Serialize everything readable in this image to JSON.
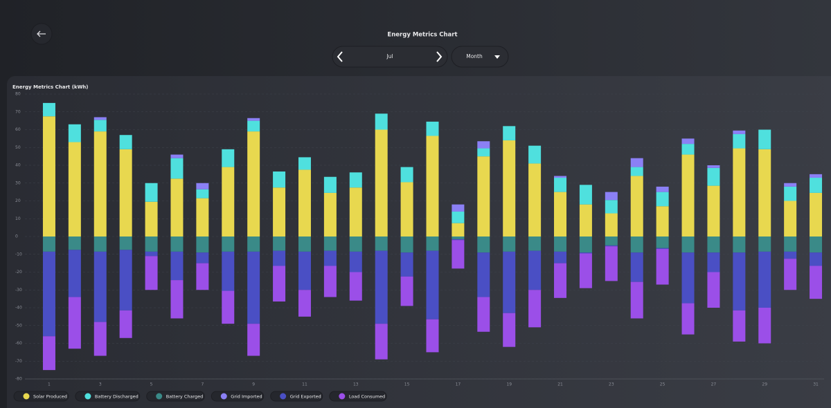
{
  "header": {
    "title": "Energy Metrics Chart",
    "period": "Jul",
    "range": "Month"
  },
  "chart_data": {
    "type": "bar",
    "stacked": true,
    "title": "Energy Metrics Chart (kWh)",
    "categories": [
      "1",
      null,
      "3",
      null,
      "5",
      null,
      "7",
      null,
      "9",
      null,
      "11",
      null,
      "13",
      null,
      "15",
      null,
      "17",
      null,
      "19",
      null,
      "21",
      null,
      "23",
      null,
      "25",
      null,
      "27",
      null,
      "29",
      null,
      "31"
    ],
    "series": [
      {
        "name": "Solar Produced",
        "color": "#e8d84f",
        "values": [
          67.5,
          53,
          59,
          49,
          19.5,
          32.5,
          21.5,
          39,
          59,
          27.5,
          37.5,
          24.5,
          27.5,
          60,
          30.5,
          56.5,
          7.5,
          45,
          54,
          41,
          25,
          18,
          13,
          34,
          17,
          46,
          28.5,
          49.5,
          49,
          20,
          24.5
        ]
      },
      {
        "name": "Battery Discharged",
        "color": "#4fe0de",
        "values": [
          7.5,
          10,
          6.5,
          8,
          10.5,
          11.5,
          5,
          10,
          6,
          9,
          7,
          9,
          8.5,
          9,
          8.5,
          8,
          6.5,
          4.5,
          8,
          10,
          8,
          11,
          7.5,
          5,
          8,
          6,
          10,
          8,
          11,
          8,
          8.5
        ]
      },
      {
        "name": "Battery Charged",
        "color": "#3a8a88",
        "values": [
          -8.5,
          -7.5,
          -8.5,
          -7.5,
          -8.5,
          -8.5,
          -9,
          -8.5,
          -8.5,
          -8,
          -8.5,
          -8,
          -8.5,
          -8,
          -9,
          -8,
          -1.5,
          -9,
          -8.5,
          -8,
          -8.5,
          -9,
          -5,
          -9,
          -6.5,
          -9,
          -9,
          -9,
          -8.5,
          -8.5,
          -9
        ]
      },
      {
        "name": "Grid Imported",
        "color": "#8b80f5",
        "values": [
          0,
          0,
          1.5,
          0,
          0,
          2,
          3.5,
          0,
          1.5,
          0,
          0,
          0,
          0,
          0,
          0,
          0,
          4,
          4,
          0,
          0,
          1,
          0,
          4.5,
          5,
          3,
          3,
          1.5,
          2,
          0,
          2,
          2
        ]
      },
      {
        "name": "Grid Exported",
        "color": "#4a4fc4",
        "values": [
          -47.5,
          -26.5,
          -39.5,
          -34,
          -2.5,
          -16,
          -6,
          -22,
          -40.5,
          -8.5,
          -21.5,
          -8.5,
          -11.5,
          -41,
          -13.5,
          -38.5,
          -0.5,
          -25,
          -34.5,
          -22,
          -6.5,
          -0.5,
          -0.5,
          -16.5,
          -0.5,
          -28.5,
          -11,
          -32.5,
          -31.5,
          -4,
          -7.5
        ]
      },
      {
        "name": "Load Consumed",
        "color": "#9b4fe8",
        "values": [
          -19,
          -29,
          -19,
          -15.5,
          -19,
          -21.5,
          -15,
          -18.5,
          -18,
          -20,
          -15,
          -17.5,
          -16,
          -20,
          -16.5,
          -18.5,
          -16,
          -19.5,
          -19,
          -21,
          -19.5,
          -19.5,
          -19.5,
          -20.5,
          -20,
          -17.5,
          -20,
          -17.5,
          -20,
          -17.5,
          -18.5
        ]
      }
    ],
    "ylim": [
      -80,
      80
    ],
    "yticks": [
      -80,
      -70,
      -60,
      -50,
      -40,
      -30,
      -20,
      -10,
      0,
      10,
      20,
      30,
      40,
      50,
      60,
      70,
      80
    ],
    "grid": true
  }
}
